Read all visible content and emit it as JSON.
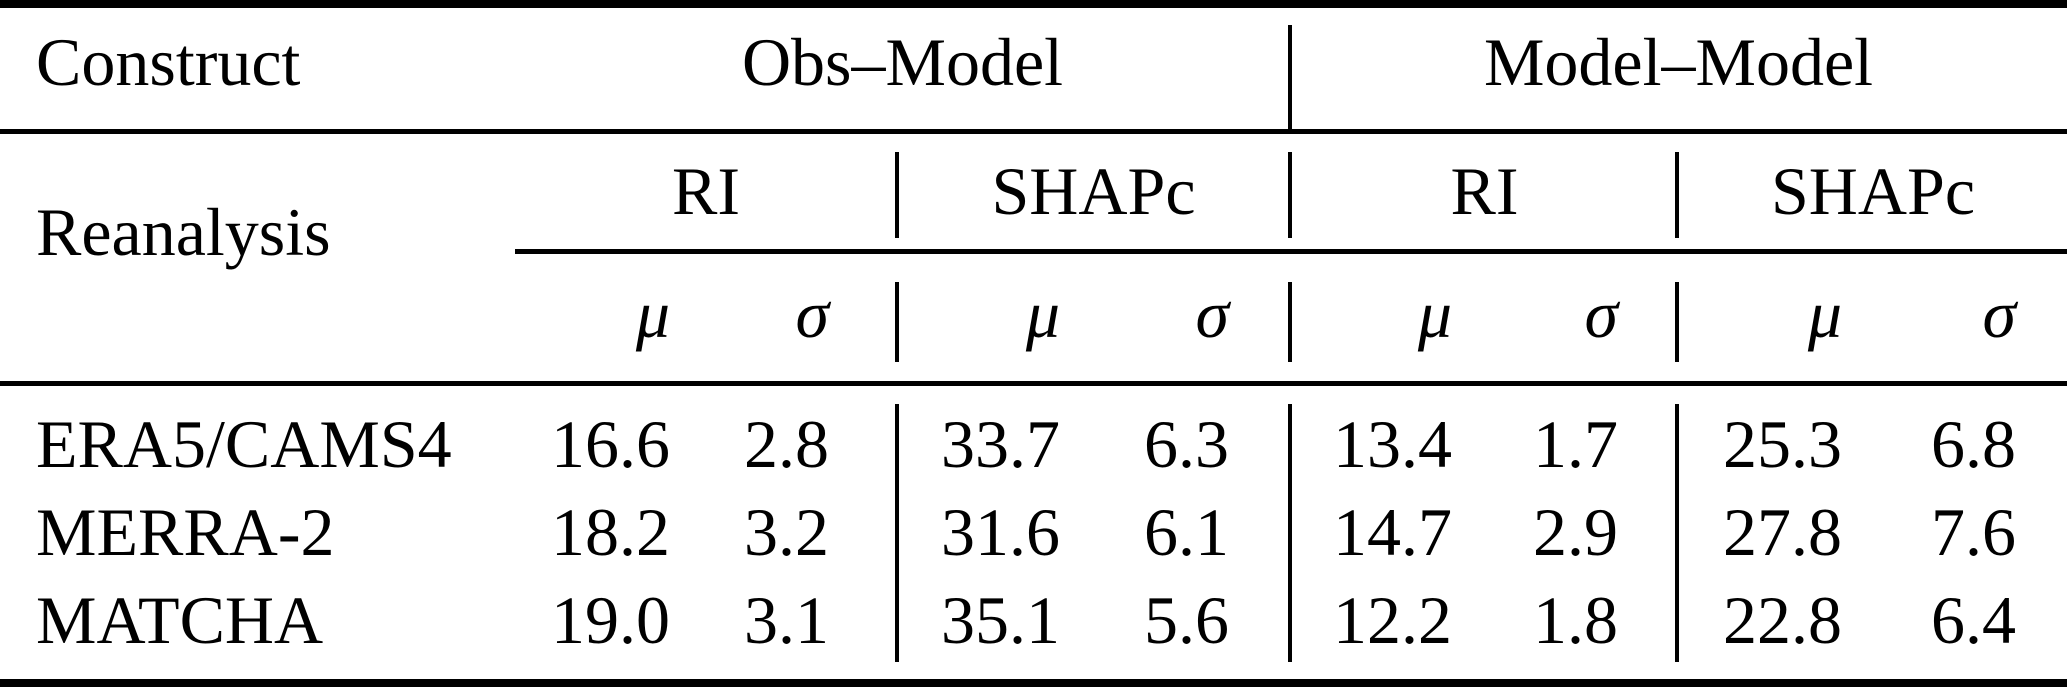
{
  "table": {
    "corner": {
      "top_label": "Construct",
      "bottom_label": "Reanalysis"
    },
    "groups": [
      {
        "label": "Obs–Model",
        "subgroups": [
          {
            "label": "RI"
          },
          {
            "label": "SHAPc"
          }
        ]
      },
      {
        "label": "Model–Model",
        "subgroups": [
          {
            "label": "RI"
          },
          {
            "label": "SHAPc"
          }
        ]
      }
    ],
    "stat_headers": {
      "mu": "μ",
      "sigma": "σ"
    },
    "rows": [
      {
        "label": "ERA5/CAMS4",
        "values": [
          "16.6",
          "2.8",
          "33.7",
          "6.3",
          "13.4",
          "1.7",
          "25.3",
          "6.8"
        ]
      },
      {
        "label": "MERRA-2",
        "values": [
          "18.2",
          "3.2",
          "31.6",
          "6.1",
          "14.7",
          "2.9",
          "27.8",
          "7.6"
        ]
      },
      {
        "label": "MATCHA",
        "values": [
          "19.0",
          "3.1",
          "35.1",
          "5.6",
          "12.2",
          "1.8",
          "22.8",
          "6.4"
        ]
      }
    ],
    "colors": {
      "background": "#ffffff",
      "text": "#000000",
      "rule": "#000000"
    }
  },
  "chart_data": {
    "type": "table",
    "title": "",
    "column_tree": {
      "row_header": [
        "Construct",
        "Reanalysis"
      ],
      "top_level": [
        "Obs–Model",
        "Model–Model"
      ],
      "second_level": [
        "RI",
        "SHAPc",
        "RI",
        "SHAPc"
      ],
      "third_level": [
        "μ",
        "σ",
        "μ",
        "σ",
        "μ",
        "σ",
        "μ",
        "σ"
      ]
    },
    "rows": [
      {
        "label": "ERA5/CAMS4",
        "values": [
          16.6,
          2.8,
          33.7,
          6.3,
          13.4,
          1.7,
          25.3,
          6.8
        ]
      },
      {
        "label": "MERRA-2",
        "values": [
          18.2,
          3.2,
          31.6,
          6.1,
          14.7,
          2.9,
          27.8,
          7.6
        ]
      },
      {
        "label": "MATCHA",
        "values": [
          19.0,
          3.1,
          35.1,
          5.6,
          12.2,
          1.8,
          22.8,
          6.4
        ]
      }
    ]
  }
}
